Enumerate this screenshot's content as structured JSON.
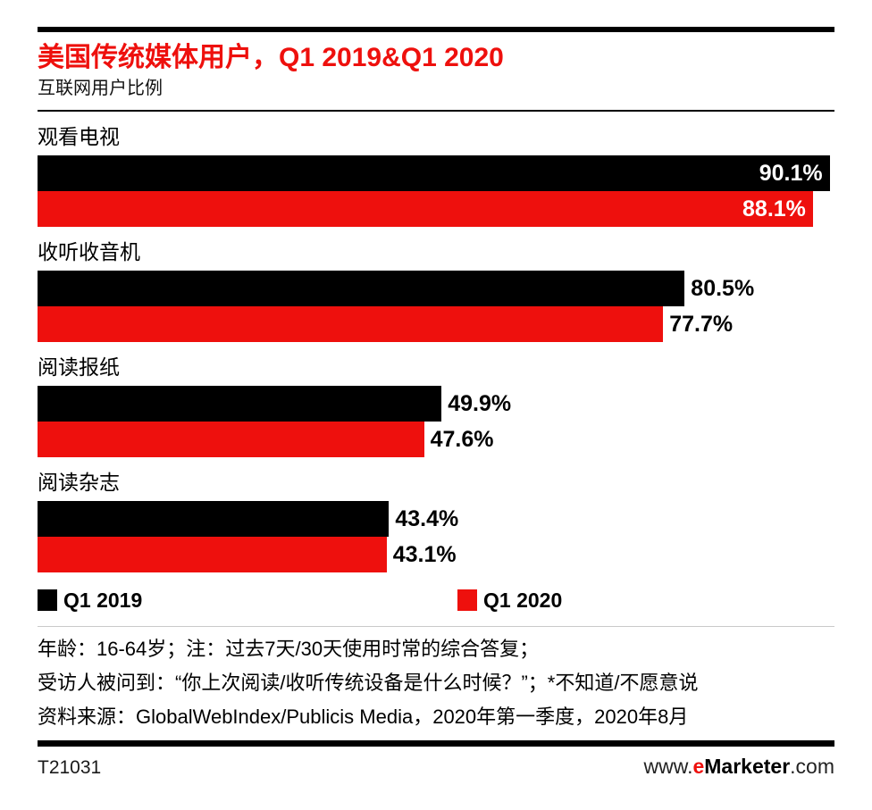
{
  "colors": {
    "accent_red": "#ee100d",
    "bar_black": "#000000",
    "divider_gray": "#c9c9c9"
  },
  "chart_data": {
    "type": "bar",
    "orientation": "horizontal",
    "title": "美国传统媒体用户，Q1 2019&Q1 2020",
    "subtitle": "互联网用户比例",
    "categories": [
      "观看电视",
      "收听收音机",
      "阅读报纸",
      "阅读杂志"
    ],
    "series": [
      {
        "name": "Q1 2019",
        "color": "#000000",
        "values": [
          90.1,
          80.5,
          49.9,
          43.4
        ]
      },
      {
        "name": "Q1 2020",
        "color": "#ee100d",
        "values": [
          88.1,
          77.7,
          47.6,
          43.1
        ]
      }
    ],
    "value_suffix": "%",
    "xlim": [
      0,
      100
    ],
    "grid": false,
    "legend_position": "bottom",
    "render_widths_pct": [
      [
        99.4,
        81.2,
        50.7,
        44.1
      ],
      [
        97.3,
        78.5,
        48.5,
        43.8
      ]
    ],
    "value_label_inside_by_category": [
      true,
      false,
      false,
      false
    ]
  },
  "footnotes": [
    "年龄：16-64岁；注：过去7天/30天使用时常的综合答复；",
    "受访人被问到：“你上次阅读/收听传统设备是什么时候？”；*不知道/不愿意说",
    "资料来源：GlobalWebIndex/Publicis Media，2020年第一季度，2020年8月"
  ],
  "footer": {
    "chart_id": "T21031",
    "site_prefix": "www.",
    "site_e": "e",
    "site_brand": "Marketer",
    "site_suffix": ".com"
  }
}
